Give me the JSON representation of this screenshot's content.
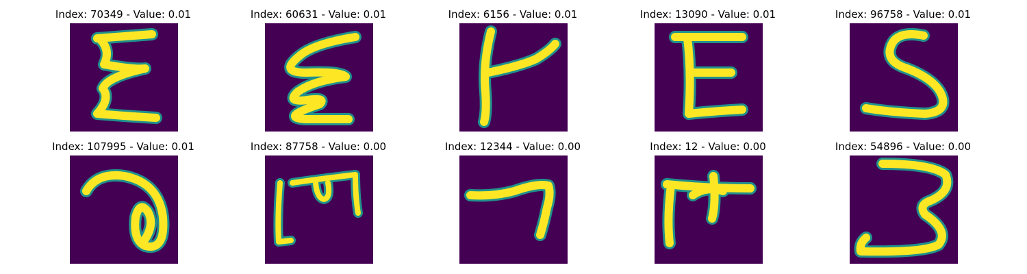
{
  "figure": {
    "panels": [
      {
        "index_text": "Index: 70349 - Value: 0.01",
        "glyph": "E-shape"
      },
      {
        "index_text": "Index: 60631 - Value: 0.01",
        "glyph": "E-shape-script"
      },
      {
        "index_text": "Index: 6156 - Value: 0.01",
        "glyph": "k-shape"
      },
      {
        "index_text": "Index: 13090 - Value: 0.01",
        "glyph": "E-shape-block"
      },
      {
        "index_text": "Index: 96758 - Value: 0.01",
        "glyph": "S-shape"
      },
      {
        "index_text": "Index: 107995 - Value: 0.01",
        "glyph": "a-shape"
      },
      {
        "index_text": "Index: 87758 - Value: 0.00",
        "glyph": "m-shape"
      },
      {
        "index_text": "Index: 12344 - Value: 0.00",
        "glyph": "7-shape"
      },
      {
        "index_text": "Index: 12 - Value: 0.00",
        "glyph": "F-shape"
      },
      {
        "index_text": "Index: 54896 - Value: 0.00",
        "glyph": "3-shape"
      }
    ],
    "colors": {
      "background": "#440154",
      "stroke_edge": "#21918c",
      "stroke_core": "#fde725",
      "title_text": "#000000"
    }
  }
}
